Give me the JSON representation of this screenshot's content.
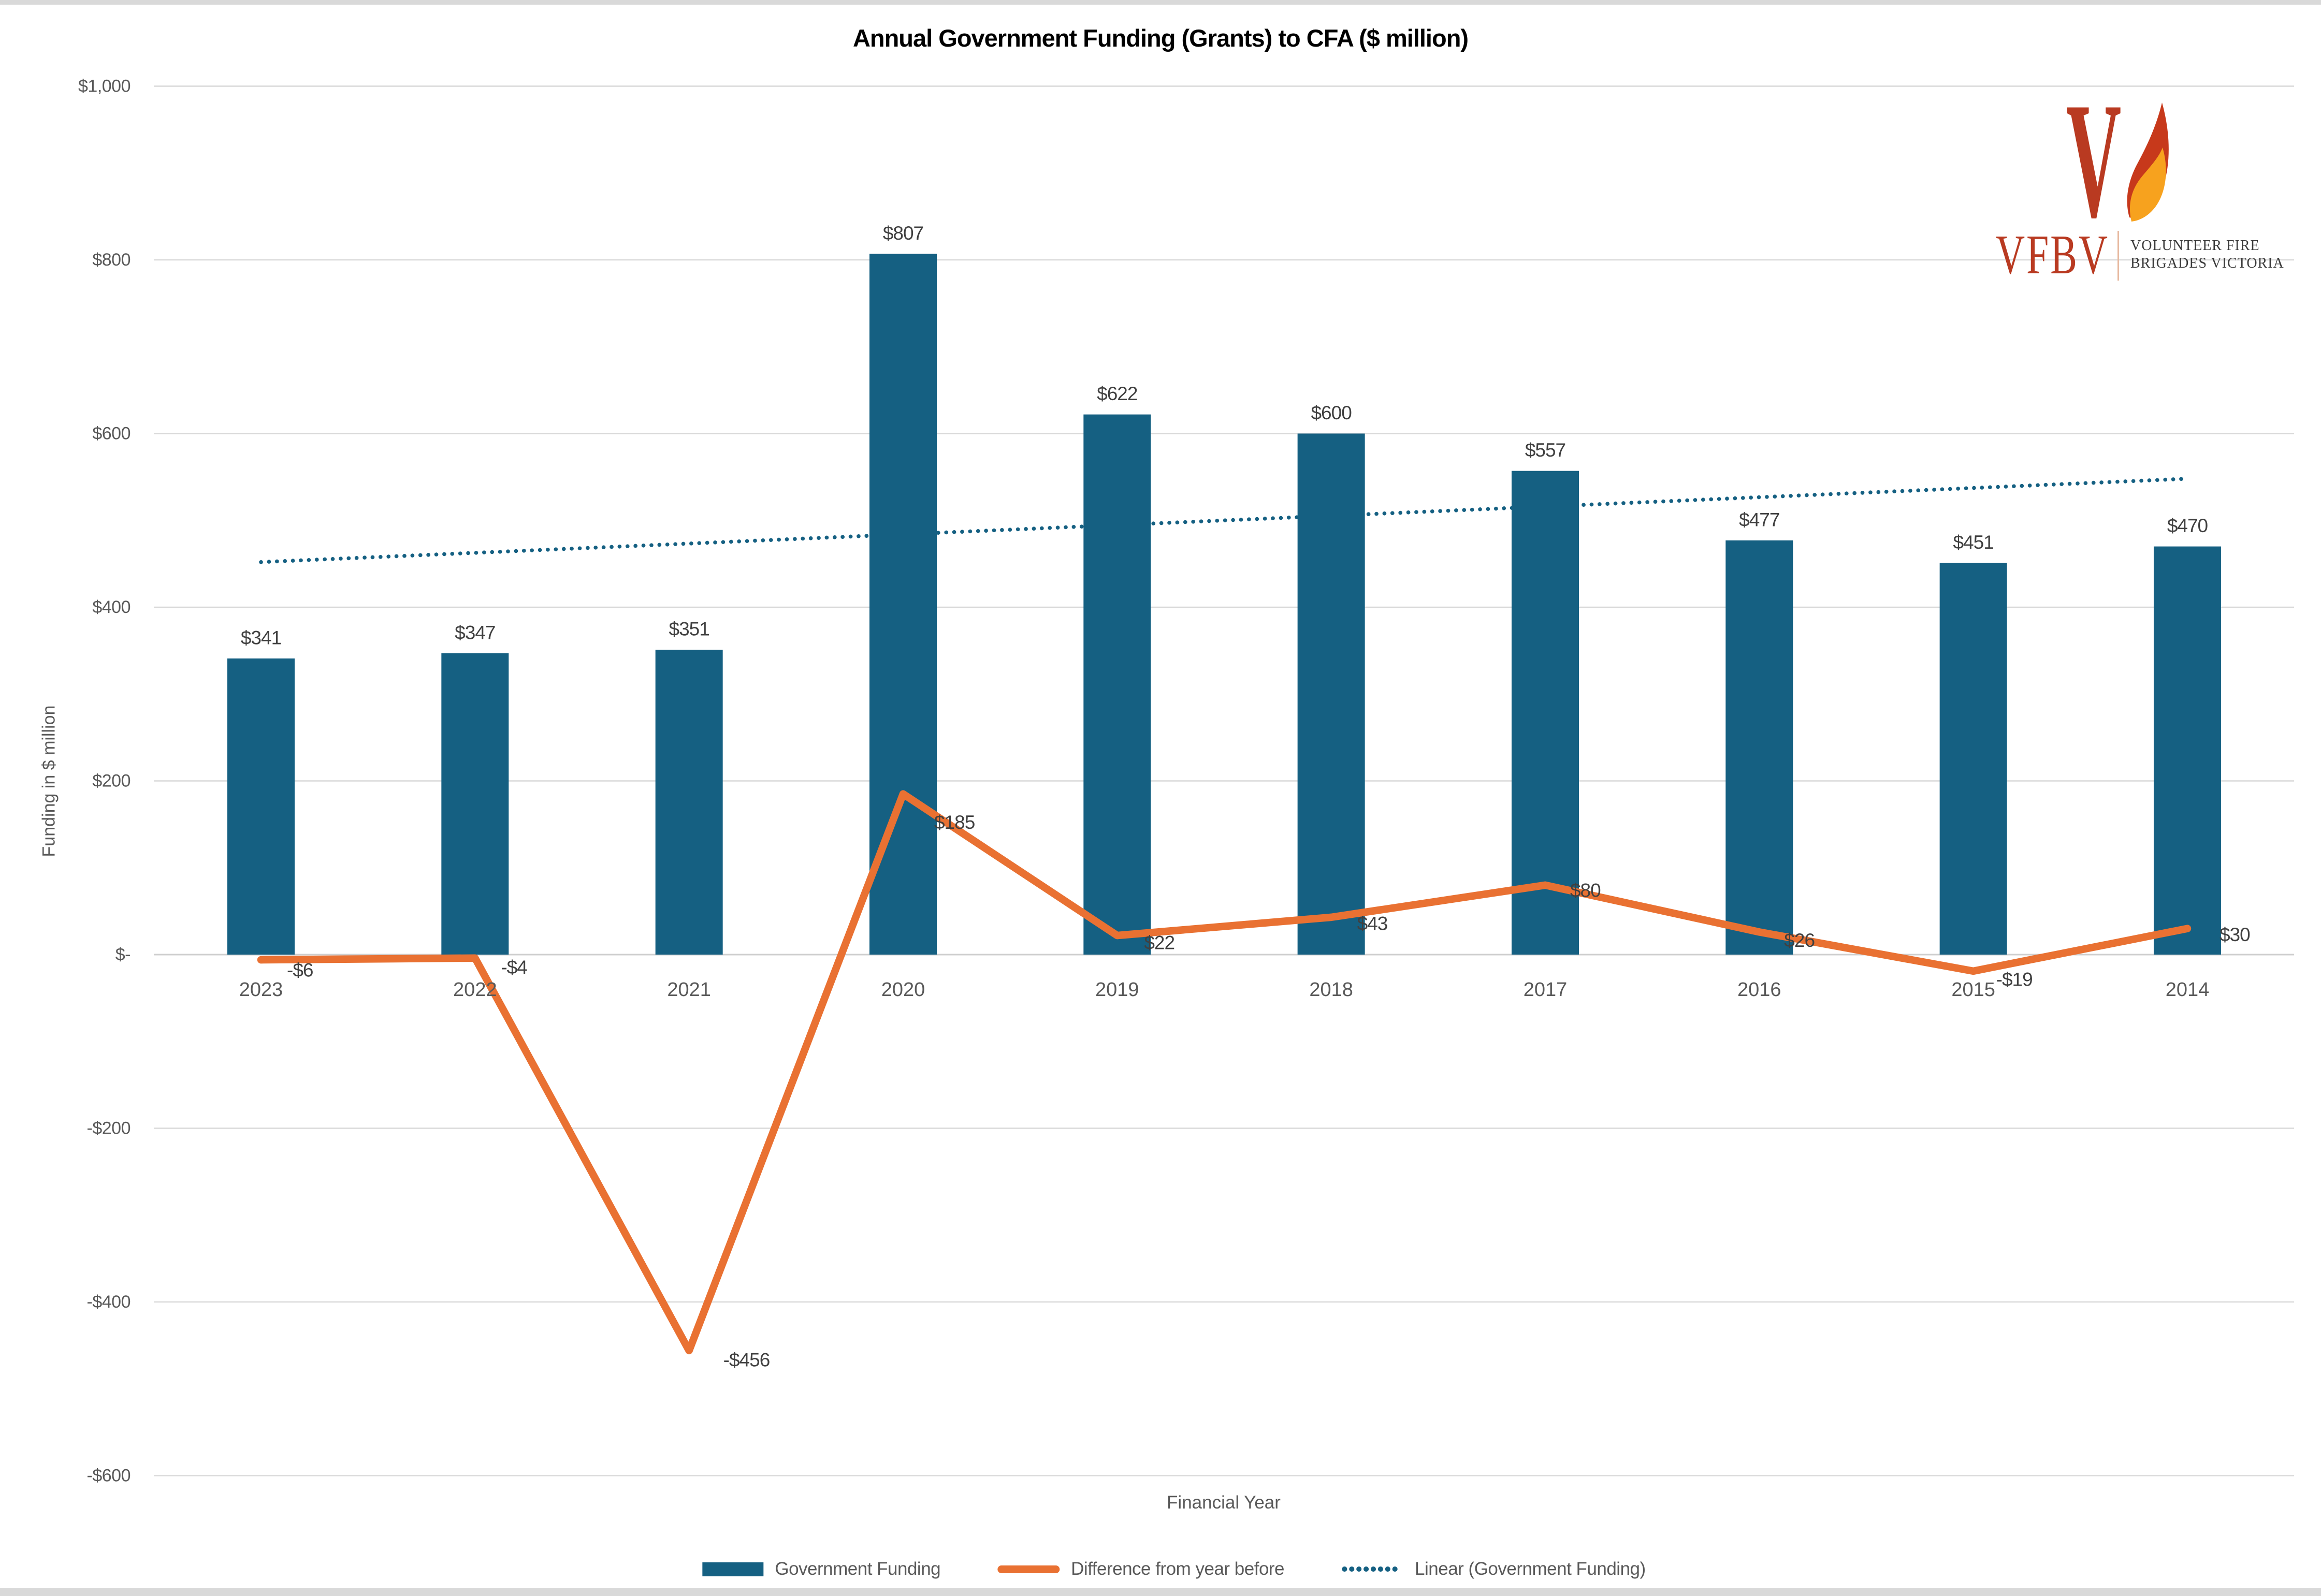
{
  "window": {
    "top_strip": "window-edge",
    "bottom_strip": "window-edge"
  },
  "logo": {
    "acronym": "VFBV",
    "org_line1": "VOLUNTEER FIRE",
    "org_line2": "BRIGADES VICTORIA",
    "accent_red": "#B93A21",
    "flame_red": "#C7391B",
    "flame_orange": "#F7A21E"
  },
  "axes": {
    "y_ticks": [
      {
        "label": "$1,000",
        "value": 1000
      },
      {
        "label": "$800",
        "value": 800
      },
      {
        "label": "$600",
        "value": 600
      },
      {
        "label": "$400",
        "value": 400
      },
      {
        "label": "$200",
        "value": 200
      },
      {
        "label": "$-",
        "value": 0
      },
      {
        "label": "-$200",
        "value": -200
      },
      {
        "label": "-$400",
        "value": -400
      },
      {
        "label": "-$600",
        "value": -600
      }
    ]
  },
  "colors": {
    "bar_teal": "#156082",
    "line_orange": "#E97132",
    "gridline": "#D9D9D9",
    "axis_text": "#595959",
    "data_label": "#404040"
  },
  "chart_data": {
    "type": "bar",
    "title": "Annual Government Funding (Grants) to CFA ($ million)",
    "xlabel": "Financial Year",
    "ylabel": "Funding in $ million",
    "ylim": [
      -600,
      1000
    ],
    "ytick_step": 200,
    "grid": true,
    "legend_position": "bottom",
    "categories": [
      "2023",
      "2022",
      "2021",
      "2020",
      "2019",
      "2018",
      "2017",
      "2016",
      "2015",
      "2014"
    ],
    "series": [
      {
        "name": "Government Funding",
        "type": "bar",
        "color": "#156082",
        "values": [
          341,
          347,
          351,
          807,
          622,
          600,
          557,
          477,
          451,
          470
        ],
        "labels": [
          "$341",
          "$347",
          "$351",
          "$807",
          "$622",
          "$600",
          "$557",
          "$477",
          "$451",
          "$470"
        ]
      },
      {
        "name": "Difference from year before",
        "type": "line",
        "color": "#E97132",
        "values": [
          -6,
          -4,
          -456,
          185,
          22,
          43,
          80,
          26,
          -19,
          30
        ],
        "labels": [
          "-$6",
          "-$4",
          "-$456",
          "$185",
          "$22",
          "$43",
          "$80",
          "$26",
          "-$19",
          "$30"
        ]
      },
      {
        "name": "Linear (Government Funding)",
        "type": "trendline",
        "color": "#156082",
        "start_value": 452,
        "end_value": 548
      }
    ]
  }
}
